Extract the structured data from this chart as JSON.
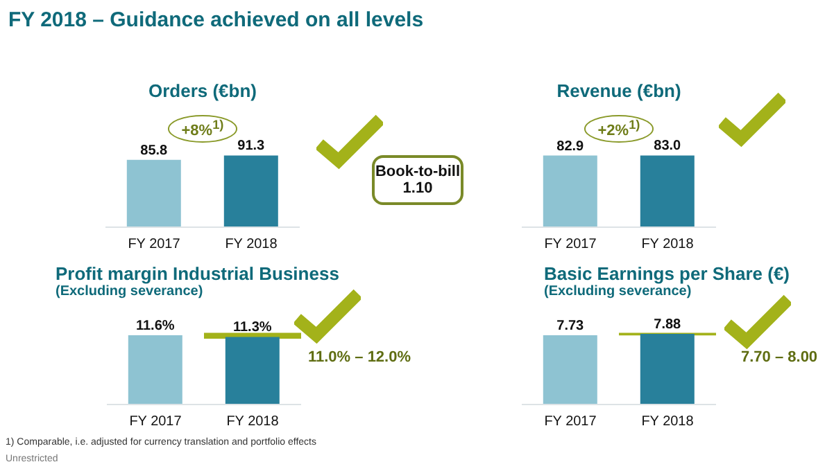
{
  "chart_data": [
    {
      "type": "other",
      "title": "FY 2018 – Guidance achieved on all levels",
      "annotations": [
        "1) Comparable, i.e. adjusted for currency translation and portfolio effects",
        "Unrestricted"
      ]
    },
    {
      "type": "bar",
      "title": "Orders (€bn)",
      "categories": [
        "FY 2017",
        "FY 2018"
      ],
      "values": [
        85.8,
        91.3
      ],
      "colors": [
        "#8ec3d2",
        "#28809b"
      ],
      "value_labels": [
        "85.8",
        "91.3"
      ],
      "annotations": [
        "+8%$^{1)}$"
      ]
    },
    {
      "type": "other",
      "annotations": [
        "Book-to-bill",
        "1.10"
      ]
    },
    {
      "type": "bar",
      "title": "Revenue (€bn)",
      "categories": [
        "FY 2017",
        "FY 2018"
      ],
      "values": [
        82.9,
        83.0
      ],
      "colors": [
        "#8ec3d2",
        "#28809b"
      ],
      "value_labels": [
        "82.9",
        "83.0"
      ],
      "annotations": [
        "+2%$^{1)}$"
      ]
    },
    {
      "type": "bar",
      "title": "Profit margin Industrial Business",
      "subtitle": "(Excluding severance)",
      "categories": [
        "FY 2017",
        "FY 2018"
      ],
      "values": [
        11.6,
        11.3
      ],
      "colors": [
        "#8ec3d2",
        "#28809b"
      ],
      "value_labels": [
        "11.6%",
        "11.3%"
      ],
      "bands": [
        {
          "axis": "y",
          "from": 11.0,
          "to": 12.0,
          "label": "11.0% – 12.0%",
          "color": "#a3b21a"
        }
      ]
    },
    {
      "type": "bar",
      "title": "Basic Earnings per Share (€)",
      "subtitle": "(Excluding severance)",
      "categories": [
        "FY 2017",
        "FY 2018"
      ],
      "values": [
        7.73,
        7.88
      ],
      "colors": [
        "#8ec3d2",
        "#28809b"
      ],
      "value_labels": [
        "7.73",
        "7.88"
      ],
      "bands": [
        {
          "axis": "y",
          "from": 7.7,
          "to": 8.0,
          "label": "7.70 – 8.00",
          "color": "#a3b21a"
        }
      ]
    }
  ]
}
